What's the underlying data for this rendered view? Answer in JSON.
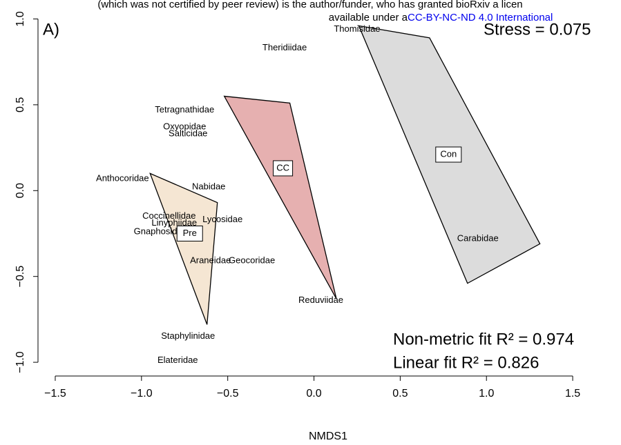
{
  "chart_data": {
    "type": "scatter",
    "header": [
      "(which was not certified by peer review) is the author/funder, who has granted bioRxiv a licen",
      "available under a",
      "CC-BY-NC-ND 4.0 International"
    ],
    "panel_label": "A)",
    "stress": "Stress = 0.075",
    "fit_nonmetric": "Non-metric fit R² = 0.974",
    "fit_linear": "Linear fit R² = 0.826",
    "xlabel": "NMDS1",
    "xlim": [
      -1.6,
      1.78
    ],
    "ylim": [
      -1.08,
      1.03
    ],
    "xticks": [
      {
        "value": -1.5,
        "label": "−1.5"
      },
      {
        "value": -1,
        "label": "−1.0"
      },
      {
        "value": -0.5,
        "label": "−0.5"
      },
      {
        "value": 0,
        "label": "0.0"
      },
      {
        "value": 0.5,
        "label": "0.5"
      },
      {
        "value": 1,
        "label": "1.0"
      },
      {
        "value": 1.5,
        "label": "1.5"
      }
    ],
    "yticks": [
      {
        "value": -1,
        "label": "−1.0"
      },
      {
        "value": -0.5,
        "label": "−0.5"
      },
      {
        "value": 0,
        "label": "0.0"
      },
      {
        "value": 0.5,
        "label": "0.5"
      },
      {
        "value": 1,
        "label": "1.0"
      }
    ],
    "labels": [
      "Thomisidae",
      "Theridiidae",
      "Tetragnathidae",
      "Oxyopidae",
      "Salticidae",
      "Anthocoridae",
      "Nabidae",
      "Coccinellidae",
      "Lycosidae",
      "Linyphiidae",
      "Gnaphosidae",
      "Araneidae",
      "Geocoridae",
      "Reduviidae",
      "Carabidae",
      "Staphylinidae",
      "Elateridae"
    ],
    "x": [
      0.25,
      -0.17,
      -0.75,
      -0.75,
      -0.73,
      -1.11,
      -0.61,
      -0.84,
      -0.53,
      -0.81,
      -0.89,
      -0.6,
      -0.36,
      0.04,
      0.95,
      -0.73,
      -0.79
    ],
    "y": [
      0.94,
      0.83,
      0.47,
      0.37,
      0.33,
      0.07,
      0.02,
      -0.15,
      -0.17,
      -0.19,
      -0.24,
      -0.41,
      -0.41,
      -0.64,
      -0.28,
      -0.85,
      -0.99
    ],
    "groups": [
      {
        "name": "Pre",
        "color": "#f5e6d3",
        "x": [
          -0.95,
          -0.56,
          -0.62
        ],
        "y": [
          0.1,
          -0.07,
          -0.78
        ],
        "label_x": -0.72,
        "label_y": -0.25
      },
      {
        "name": "CC",
        "color": "#e6b0b0",
        "x": [
          -0.52,
          -0.14,
          0.13
        ],
        "y": [
          0.55,
          0.51,
          -0.63
        ],
        "label_x": -0.18,
        "label_y": 0.13
      },
      {
        "name": "Con",
        "color": "#dcdcdc",
        "x": [
          0.26,
          0.67,
          1.31,
          0.89
        ],
        "y": [
          0.96,
          0.89,
          -0.31,
          -0.54
        ],
        "label_x": 0.78,
        "label_y": 0.21
      }
    ]
  }
}
